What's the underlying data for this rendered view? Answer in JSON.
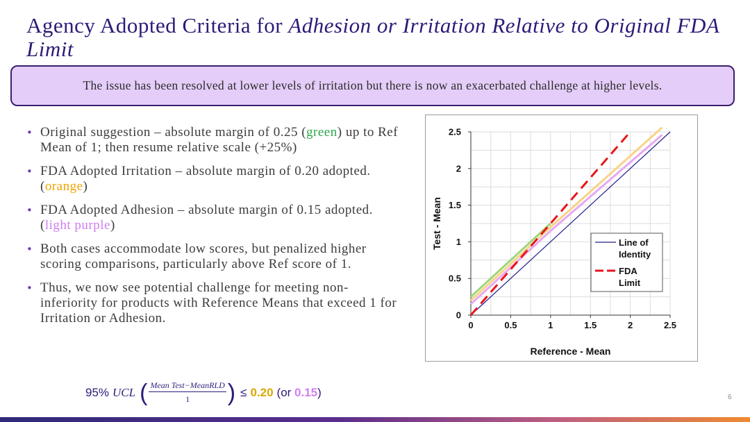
{
  "title": {
    "plain": "Agency Adopted Criteria for ",
    "italic": "Adhesion or Irritation Relative to Original FDA Limit"
  },
  "banner": {
    "text": "The issue has been resolved at lower levels of irritation but there is now an exacerbated challenge at higher levels."
  },
  "bullets": [
    {
      "pre": "Original suggestion – absolute margin of 0.25 (",
      "color_word": "green",
      "post": ") up to Ref Mean of 1; then resume relative scale (+25%)"
    },
    {
      "pre": "FDA Adopted Irritation – absolute margin of 0.20 adopted. (",
      "color_word": "orange",
      "post": ")"
    },
    {
      "pre": "FDA Adopted Adhesion – absolute margin of 0.15 adopted. (",
      "color_word": "light purple",
      "post": ")"
    },
    {
      "text": "Both cases accommodate low scores, but penalized higher scoring comparisons, particularly above Ref score of 1."
    },
    {
      "text": "Thus, we now see potential challenge for meeting non-inferiority for products with Reference Means that exceed 1 for Irritation or Adhesion."
    }
  ],
  "formula": {
    "prefix": "95%",
    "ucl": "UCL",
    "numerator": "Mean Test−MeanRLD",
    "denominator": "1",
    "le": "≤",
    "v20": "0.20",
    "or_text": "(or",
    "v15": "0.15",
    "close": ")"
  },
  "colors": {
    "green": "#2aa84a",
    "orange": "#f1a300",
    "light_purple": "#cc7ef0",
    "red": "#e8151b",
    "navy": "#1f1f8a"
  },
  "chart_data": {
    "type": "line",
    "xlabel": "Reference - Mean",
    "ylabel": "Test - Mean",
    "xlim": [
      0,
      2.5
    ],
    "ylim": [
      0,
      2.5
    ],
    "xticks": [
      "0",
      "0.5",
      "1",
      "1.5",
      "2",
      "2.5"
    ],
    "yticks": [
      "0",
      "0.5",
      "1",
      "1.5",
      "2",
      "2.5"
    ],
    "grid": true,
    "legend_position": "right",
    "legend": [
      {
        "label1": "Line of",
        "label2": "Identity"
      },
      {
        "label1": "FDA",
        "label2": "Limit"
      }
    ],
    "series": [
      {
        "name": "Line of Identity",
        "color": "#1f1f8a",
        "style": "solid",
        "x": [
          0,
          2.5
        ],
        "y": [
          0,
          2.5
        ]
      },
      {
        "name": "FDA Limit",
        "color": "#e8151b",
        "style": "dashed",
        "x": [
          0,
          2
        ],
        "y": [
          0,
          2.5
        ]
      },
      {
        "name": "Original suggestion",
        "color": "#9ed67a",
        "style": "solid",
        "x": [
          0,
          1
        ],
        "y": [
          0.25,
          1.25
        ]
      },
      {
        "name": "FDA Adopted Irritation",
        "color": "#f7d486",
        "style": "solid",
        "x": [
          0,
          1,
          2.4
        ],
        "y": [
          0.2,
          1.2,
          2.56
        ]
      },
      {
        "name": "FDA Adopted Adhesion",
        "color": "#e7a8f2",
        "style": "solid",
        "x": [
          0,
          1,
          2.4
        ],
        "y": [
          0.15,
          1.15,
          2.46
        ]
      }
    ]
  },
  "page_number": "6"
}
